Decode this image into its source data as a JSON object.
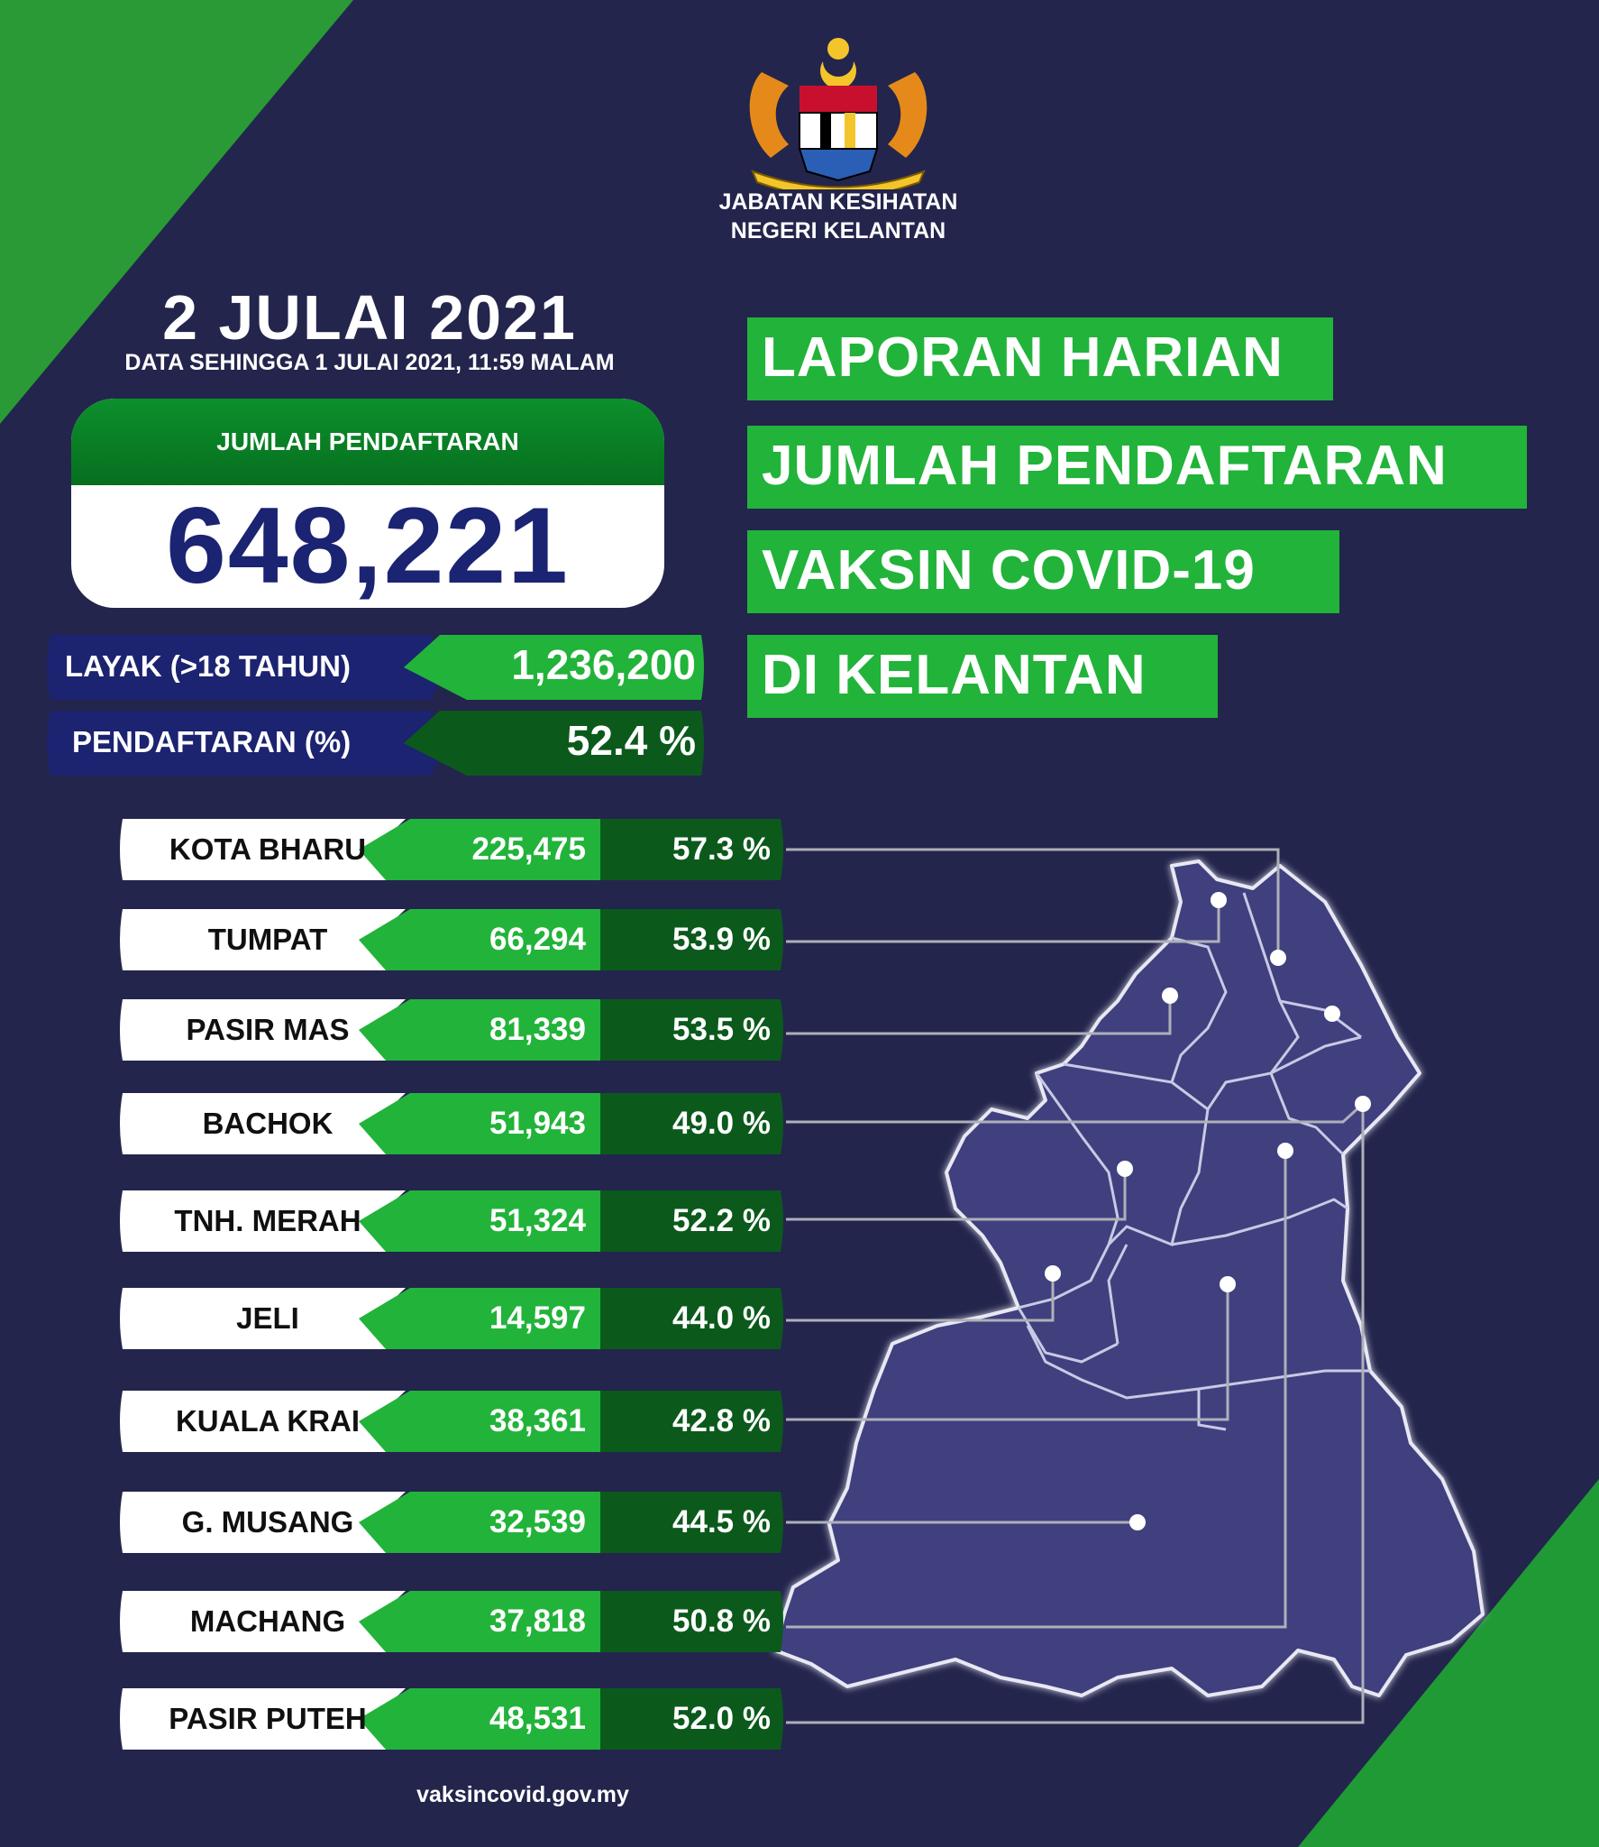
{
  "agency": {
    "line1": "JABATAN KESIHATAN",
    "line2": "NEGERI KELANTAN"
  },
  "report": {
    "date": "2 JULAI 2021",
    "as_of": "DATA SEHINGGA 1 JULAI  2021, 11:59 MALAM"
  },
  "total": {
    "label": "JUMLAH PENDAFTARAN",
    "value": "648,221"
  },
  "eligible": {
    "label": "LAYAK (>18 TAHUN)",
    "value": "1,236,200"
  },
  "percent": {
    "label": "PENDAFTARAN (%)",
    "value": "52.4 %"
  },
  "title": {
    "line1": "LAPORAN HARIAN",
    "line2": "JUMLAH PENDAFTARAN",
    "line3": "VAKSIN COVID-19",
    "line4": "DI KELANTAN"
  },
  "districts": [
    {
      "name": "KOTA BHARU",
      "value": "225,475",
      "pct": "57.3 %"
    },
    {
      "name": "TUMPAT",
      "value": "66,294",
      "pct": "53.9 %"
    },
    {
      "name": "PASIR MAS",
      "value": "81,339",
      "pct": "53.5 %"
    },
    {
      "name": "BACHOK",
      "value": "51,943",
      "pct": "49.0 %"
    },
    {
      "name": "TNH. MERAH",
      "value": "51,324",
      "pct": "52.2 %"
    },
    {
      "name": "JELI",
      "value": "14,597",
      "pct": "44.0 %"
    },
    {
      "name": "KUALA KRAI",
      "value": "38,361",
      "pct": "42.8 %"
    },
    {
      "name": "G. MUSANG",
      "value": "32,539",
      "pct": "44.5 %"
    },
    {
      "name": "MACHANG",
      "value": "37,818",
      "pct": "50.8 %"
    },
    {
      "name": "PASIR PUTEH",
      "value": "48,531",
      "pct": "52.0 %"
    }
  ],
  "footer": {
    "url": "vaksincovid.gov.my"
  },
  "colors": {
    "background": "#23254c",
    "green": "#22b33a",
    "dark_green": "#0b5a1c",
    "navy_pill": "#1c2370",
    "map_fill": "#41417f"
  }
}
